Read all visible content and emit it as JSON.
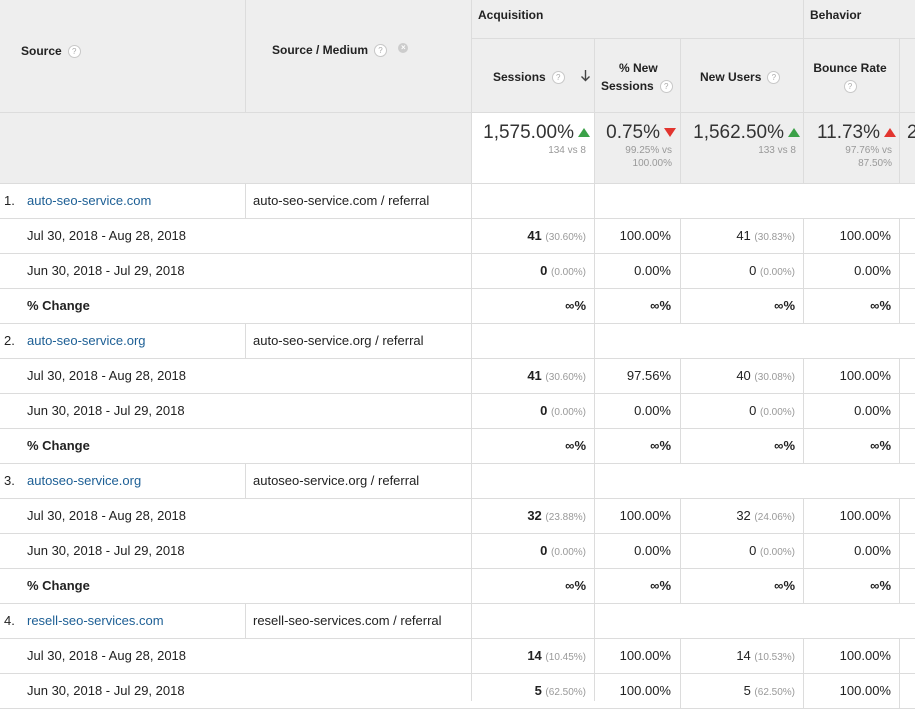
{
  "header": {
    "source": "Source",
    "source_medium": "Source / Medium",
    "group_acquisition": "Acquisition",
    "group_behavior": "Behavior",
    "sessions": "Sessions",
    "new_sessions_line1": "% New",
    "new_sessions_line2": "Sessions",
    "new_users": "New Users",
    "bounce_rate": "Bounce Rate",
    "help_glyph": "?"
  },
  "summary": {
    "sessions": {
      "value": "1,575.00%",
      "detail1": "134 vs 8",
      "trend": "up-green"
    },
    "new_sessions": {
      "value": "0.75%",
      "detail1": "99.25% vs",
      "detail2": "100.00%",
      "trend": "down-red"
    },
    "new_users": {
      "value": "1,562.50%",
      "detail1": "133 vs 8",
      "trend": "up-green"
    },
    "bounce_rate": {
      "value": "11.73%",
      "detail1": "97.76% vs",
      "detail2": "87.50%",
      "trend": "up-red"
    },
    "next_partial": "2"
  },
  "colors": {
    "link": "#1d5f95",
    "up_good": "#3ba148",
    "bad": "#e2352f",
    "header_bg": "#eeeeee"
  },
  "rows": [
    {
      "index": "1.",
      "source": "auto-seo-service.com",
      "medium": "auto-seo-service.com / referral",
      "sub": [
        {
          "label": "Jul 30, 2018 - Aug 28, 2018",
          "sessions": "41",
          "sessions_pct": "(30.60%)",
          "new_sessions": "100.00%",
          "new_users": "41",
          "new_users_pct": "(30.83%)",
          "bounce": "100.00%"
        },
        {
          "label": "Jun 30, 2018 - Jul 29, 2018",
          "sessions": "0",
          "sessions_pct": "(0.00%)",
          "new_sessions": "0.00%",
          "new_users": "0",
          "new_users_pct": "(0.00%)",
          "bounce": "0.00%"
        },
        {
          "label": "% Change",
          "sessions": "∞%",
          "sessions_pct": "",
          "new_sessions": "∞%",
          "new_users": "∞%",
          "new_users_pct": "",
          "bounce": "∞%"
        }
      ]
    },
    {
      "index": "2.",
      "source": "auto-seo-service.org",
      "medium": "auto-seo-service.org / referral",
      "sub": [
        {
          "label": "Jul 30, 2018 - Aug 28, 2018",
          "sessions": "41",
          "sessions_pct": "(30.60%)",
          "new_sessions": "97.56%",
          "new_users": "40",
          "new_users_pct": "(30.08%)",
          "bounce": "100.00%"
        },
        {
          "label": "Jun 30, 2018 - Jul 29, 2018",
          "sessions": "0",
          "sessions_pct": "(0.00%)",
          "new_sessions": "0.00%",
          "new_users": "0",
          "new_users_pct": "(0.00%)",
          "bounce": "0.00%"
        },
        {
          "label": "% Change",
          "sessions": "∞%",
          "sessions_pct": "",
          "new_sessions": "∞%",
          "new_users": "∞%",
          "new_users_pct": "",
          "bounce": "∞%"
        }
      ]
    },
    {
      "index": "3.",
      "source": "autoseo-service.org",
      "medium": "autoseo-service.org / referral",
      "sub": [
        {
          "label": "Jul 30, 2018 - Aug 28, 2018",
          "sessions": "32",
          "sessions_pct": "(23.88%)",
          "new_sessions": "100.00%",
          "new_users": "32",
          "new_users_pct": "(24.06%)",
          "bounce": "100.00%"
        },
        {
          "label": "Jun 30, 2018 - Jul 29, 2018",
          "sessions": "0",
          "sessions_pct": "(0.00%)",
          "new_sessions": "0.00%",
          "new_users": "0",
          "new_users_pct": "(0.00%)",
          "bounce": "0.00%"
        },
        {
          "label": "% Change",
          "sessions": "∞%",
          "sessions_pct": "",
          "new_sessions": "∞%",
          "new_users": "∞%",
          "new_users_pct": "",
          "bounce": "∞%"
        }
      ]
    },
    {
      "index": "4.",
      "source": "resell-seo-services.com",
      "medium": "resell-seo-services.com / referral",
      "sub": [
        {
          "label": "Jul 30, 2018 - Aug 28, 2018",
          "sessions": "14",
          "sessions_pct": "(10.45%)",
          "new_sessions": "100.00%",
          "new_users": "14",
          "new_users_pct": "(10.53%)",
          "bounce": "100.00%"
        },
        {
          "label": "Jun 30, 2018 - Jul 29, 2018",
          "sessions": "5",
          "sessions_pct": "(62.50%)",
          "new_sessions": "100.00%",
          "new_users": "5",
          "new_users_pct": "(62.50%)",
          "bounce": "100.00%"
        }
      ]
    }
  ]
}
